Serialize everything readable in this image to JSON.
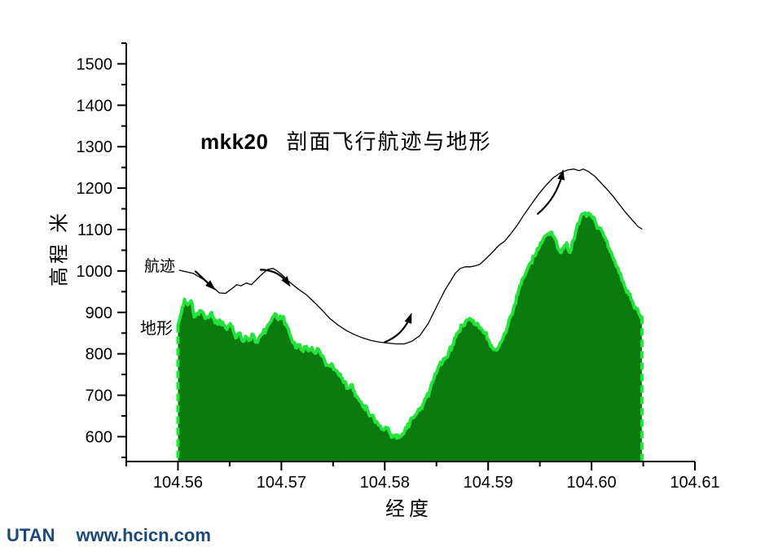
{
  "title": {
    "code": "mkk20",
    "text": "剖面飞行航迹与地形"
  },
  "watermark": {
    "brand": "UTAN",
    "site": "www.hcicn.com"
  },
  "colors": {
    "background": "#ffffff",
    "axis": "#000000",
    "trajectory": "#000000",
    "terrain_fill": "#0b7b10",
    "terrain_edge": "#25e23c",
    "watermark_text": "#1d4877"
  },
  "chart_data": {
    "type": "area",
    "title": "mkk20  剖面飞行航迹与地形",
    "xlabel": "经度",
    "ylabel": "高程 米",
    "xlim": [
      104.555,
      104.61
    ],
    "ylim": [
      540,
      1550
    ],
    "grid": false,
    "legend_position": "none",
    "x_major_ticks": [
      104.56,
      104.57,
      104.58,
      104.59,
      104.6,
      104.61
    ],
    "x_tick_labels": [
      "104.56",
      "104.57",
      "104.58",
      "104.59",
      "104.60",
      "104.61"
    ],
    "x_minor_ticks": [
      104.555,
      104.565,
      104.575,
      104.585,
      104.595,
      104.605
    ],
    "y_major_ticks": [
      600,
      700,
      800,
      900,
      1000,
      1100,
      1200,
      1300,
      1400,
      1500
    ],
    "y_minor_ticks": [
      550,
      650,
      750,
      850,
      950,
      1050,
      1150,
      1250,
      1350,
      1450,
      1550
    ],
    "series": [
      {
        "name": "航迹",
        "type": "line",
        "color": "#000000",
        "points": [
          [
            104.5601,
            1002
          ],
          [
            104.5615,
            994
          ],
          [
            104.5625,
            979
          ],
          [
            104.5633,
            963
          ],
          [
            104.564,
            947
          ],
          [
            104.5646,
            946
          ],
          [
            104.5652,
            957
          ],
          [
            104.5657,
            967
          ],
          [
            104.5661,
            964
          ],
          [
            104.5666,
            971
          ],
          [
            104.5671,
            967
          ],
          [
            104.5677,
            982
          ],
          [
            104.5682,
            994
          ],
          [
            104.5687,
            1004
          ],
          [
            104.5692,
            1006
          ],
          [
            104.5696,
            1000
          ],
          [
            104.5701,
            990
          ],
          [
            104.5708,
            973
          ],
          [
            104.5716,
            957
          ],
          [
            104.5724,
            943
          ],
          [
            104.5732,
            924
          ],
          [
            104.574,
            904
          ],
          [
            104.5747,
            885
          ],
          [
            104.5755,
            869
          ],
          [
            104.5763,
            856
          ],
          [
            104.5771,
            846
          ],
          [
            104.5779,
            838
          ],
          [
            104.5787,
            832
          ],
          [
            104.5795,
            828
          ],
          [
            104.5803,
            826
          ],
          [
            104.5811,
            824
          ],
          [
            104.5819,
            824
          ],
          [
            104.5826,
            830
          ],
          [
            104.5834,
            844
          ],
          [
            104.5842,
            873
          ],
          [
            104.5847,
            898
          ],
          [
            104.5853,
            928
          ],
          [
            104.5858,
            953
          ],
          [
            104.5864,
            977
          ],
          [
            104.5868,
            994
          ],
          [
            104.5873,
            1006
          ],
          [
            104.5878,
            1010
          ],
          [
            104.5883,
            1010
          ],
          [
            104.5887,
            1012
          ],
          [
            104.5892,
            1016
          ],
          [
            104.5898,
            1030
          ],
          [
            104.5904,
            1045
          ],
          [
            104.591,
            1061
          ],
          [
            104.5916,
            1072
          ],
          [
            104.5922,
            1090
          ],
          [
            104.5928,
            1110
          ],
          [
            104.5935,
            1137
          ],
          [
            104.5942,
            1162
          ],
          [
            104.5949,
            1186
          ],
          [
            104.5956,
            1207
          ],
          [
            104.5963,
            1225
          ],
          [
            104.597,
            1237
          ],
          [
            104.5977,
            1244
          ],
          [
            104.5983,
            1246
          ],
          [
            104.5988,
            1242
          ],
          [
            104.5992,
            1246
          ],
          [
            104.5997,
            1240
          ],
          [
            104.6003,
            1229
          ],
          [
            104.6009,
            1213
          ],
          [
            104.6015,
            1197
          ],
          [
            104.6021,
            1180
          ],
          [
            104.6027,
            1160
          ],
          [
            104.6033,
            1141
          ],
          [
            104.604,
            1121
          ],
          [
            104.6045,
            1107
          ],
          [
            104.6049,
            1101
          ]
        ]
      },
      {
        "name": "地形",
        "type": "area",
        "fill": "#0b7b10",
        "edge": "#25e23c",
        "x_start": 104.56,
        "x_step": 0.000316,
        "elevations": [
          869,
          898,
          932,
          918,
          928,
          889,
          898,
          904,
          893,
          889,
          898,
          885,
          873,
          879,
          869,
          859,
          873,
          854,
          840,
          850,
          830,
          840,
          834,
          846,
          830,
          840,
          850,
          859,
          873,
          889,
          896,
          885,
          889,
          873,
          854,
          830,
          815,
          822,
          811,
          815,
          807,
          815,
          801,
          811,
          795,
          781,
          772,
          776,
          762,
          752,
          742,
          733,
          717,
          725,
          709,
          694,
          684,
          674,
          664,
          651,
          645,
          635,
          625,
          616,
          620,
          606,
          600,
          596,
          600,
          606,
          620,
          635,
          645,
          655,
          664,
          678,
          694,
          709,
          733,
          752,
          772,
          781,
          791,
          807,
          820,
          840,
          854,
          869,
          877,
          883,
          879,
          873,
          869,
          859,
          850,
          834,
          820,
          811,
          815,
          830,
          850,
          869,
          893,
          918,
          943,
          967,
          986,
          1006,
          1021,
          1035,
          1054,
          1068,
          1080,
          1088,
          1093,
          1084,
          1064,
          1045,
          1054,
          1068,
          1045,
          1074,
          1103,
          1123,
          1138,
          1132,
          1138,
          1127,
          1113,
          1103,
          1093,
          1074,
          1054,
          1035,
          1015,
          996,
          976,
          957,
          943,
          928,
          912,
          898,
          889
        ]
      }
    ],
    "arrows": [
      {
        "tail": [
          104.5617,
          999
        ],
        "head": [
          104.5634,
          959
        ],
        "bend": 0
      },
      {
        "tail": [
          104.568,
          1003
        ],
        "head": [
          104.5707,
          968
        ],
        "bend": -10
      },
      {
        "tail": [
          104.58,
          828
        ],
        "head": [
          104.5825,
          892
        ],
        "bend": 10
      },
      {
        "tail": [
          104.5948,
          1138
        ],
        "head": [
          104.5972,
          1238
        ],
        "bend": 10
      }
    ]
  }
}
